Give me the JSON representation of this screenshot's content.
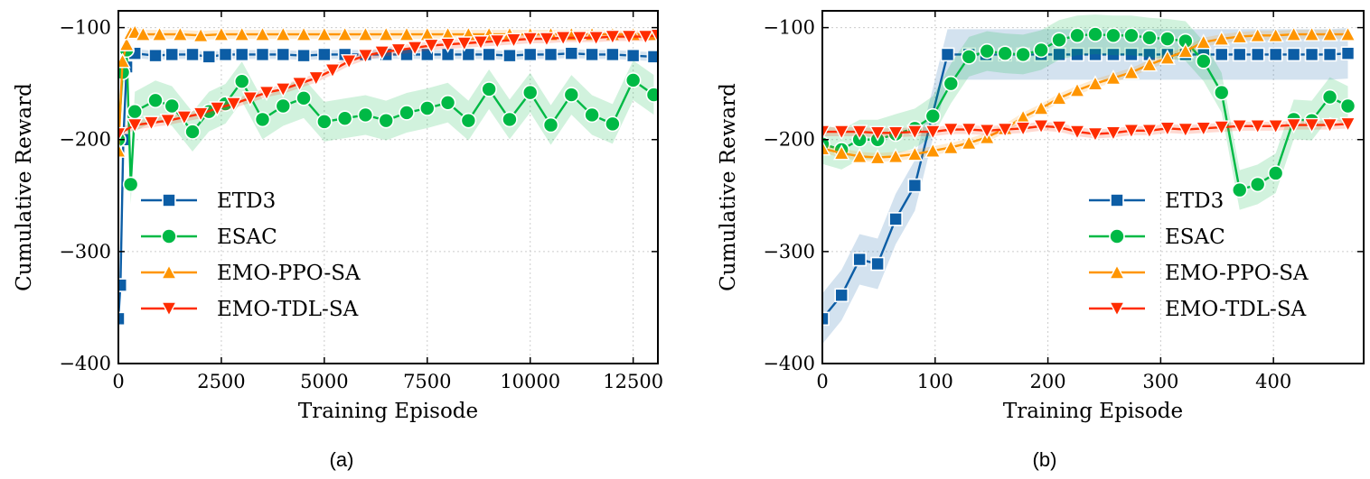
{
  "colors": {
    "ETD3": "#0c5da5",
    "ESAC": "#00b945",
    "EMO-PPO-SA": "#ff9500",
    "EMO-TDL-SA": "#ff2c00"
  },
  "chart_data": [
    {
      "type": "line",
      "caption": "(a)",
      "xlabel": "Training Episode",
      "ylabel": "Cumulative Reward",
      "xlim": [
        0,
        13100
      ],
      "ylim": [
        -400,
        -85
      ],
      "xticks": [
        0,
        2500,
        5000,
        7500,
        10000,
        12500
      ],
      "xtick_labels": [
        "0",
        "2500",
        "5000",
        "7500",
        "10000",
        "12500"
      ],
      "yticks": [
        -400,
        -300,
        -200,
        -100
      ],
      "ytick_labels": [
        "−400",
        "−300",
        "−200",
        "−100"
      ],
      "grid": true,
      "legend": "lower-left",
      "series": [
        {
          "name": "ETD3",
          "marker": "square",
          "x": [
            0,
            50,
            120,
            200,
            300,
            400,
            900,
            1300,
            1800,
            2200,
            2600,
            3000,
            3500,
            4000,
            4500,
            5000,
            5500,
            6000,
            6500,
            7000,
            7500,
            8000,
            8500,
            9000,
            9500,
            10000,
            10500,
            11000,
            11500,
            12000,
            12500,
            13000
          ],
          "y": [
            -360,
            -330,
            -200,
            -135,
            -124,
            -123,
            -125,
            -124,
            -124,
            -126,
            -124,
            -124,
            -124,
            -124,
            -125,
            -124,
            -124,
            -124,
            -124,
            -124,
            -124,
            -124,
            -124,
            -124,
            -125,
            -124,
            -124,
            -123,
            -124,
            -124,
            -125,
            -126
          ]
        },
        {
          "name": "ESAC",
          "marker": "circle",
          "x": [
            0,
            100,
            200,
            300,
            400,
            900,
            1300,
            1800,
            2200,
            2600,
            3000,
            3500,
            4000,
            4500,
            5000,
            5500,
            6000,
            6500,
            7000,
            7500,
            8000,
            8500,
            9000,
            9500,
            10000,
            10500,
            11000,
            11500,
            12000,
            12500,
            13000
          ],
          "y": [
            -200,
            -140,
            -120,
            -240,
            -175,
            -165,
            -170,
            -193,
            -175,
            -168,
            -148,
            -182,
            -170,
            -163,
            -184,
            -181,
            -178,
            -183,
            -176,
            -172,
            -167,
            -183,
            -155,
            -182,
            -158,
            -187,
            -160,
            -178,
            -186,
            -147,
            -160
          ]
        },
        {
          "name": "EMO-PPO-SA",
          "marker": "triangle-up",
          "x": [
            0,
            100,
            200,
            300,
            400,
            600,
            1000,
            1500,
            2000,
            2500,
            3000,
            3500,
            4000,
            4500,
            5000,
            5500,
            6000,
            6500,
            7000,
            7500,
            8000,
            8500,
            9000,
            9500,
            10000,
            10500,
            11000,
            11500,
            12000,
            12500,
            13000
          ],
          "y": [
            -210,
            -130,
            -115,
            -105,
            -104,
            -106,
            -106,
            -106,
            -107,
            -106,
            -106,
            -106,
            -106,
            -106,
            -106,
            -106,
            -106,
            -106,
            -106,
            -106,
            -106,
            -106,
            -106,
            -106,
            -106,
            -106,
            -106,
            -106,
            -106,
            -106,
            -106
          ]
        },
        {
          "name": "EMO-TDL-SA",
          "marker": "triangle-down",
          "x": [
            0,
            400,
            800,
            1200,
            1600,
            2000,
            2400,
            2800,
            3200,
            3600,
            4000,
            4400,
            4800,
            5200,
            5600,
            6000,
            6400,
            6800,
            7200,
            7600,
            8000,
            8400,
            8800,
            9200,
            9600,
            10000,
            10400,
            10800,
            11200,
            11600,
            12000,
            12400,
            12800,
            13100
          ],
          "y": [
            -195,
            -187,
            -185,
            -183,
            -180,
            -177,
            -172,
            -168,
            -163,
            -158,
            -155,
            -150,
            -145,
            -138,
            -130,
            -125,
            -122,
            -120,
            -118,
            -116,
            -115,
            -114,
            -113,
            -112,
            -111,
            -110,
            -110,
            -109,
            -109,
            -109,
            -108,
            -108,
            -108,
            -107
          ]
        }
      ]
    },
    {
      "type": "line",
      "caption": "(b)",
      "xlabel": "Training Episode",
      "ylabel": "Cumulative Reward",
      "xlim": [
        0,
        480
      ],
      "ylim": [
        -400,
        -85
      ],
      "xticks": [
        0,
        100,
        200,
        300,
        400
      ],
      "xtick_labels": [
        "0",
        "100",
        "200",
        "300",
        "400"
      ],
      "yticks": [
        -400,
        -300,
        -200,
        -100
      ],
      "ytick_labels": [
        "−400",
        "−300",
        "−200",
        "−100"
      ],
      "grid": true,
      "legend": "lower-right",
      "series": [
        {
          "name": "ETD3",
          "marker": "square",
          "x": [
            0,
            17,
            33,
            49,
            65,
            82,
            111,
            130,
            145,
            162,
            178,
            194,
            210,
            226,
            242,
            258,
            274,
            290,
            306,
            322,
            338,
            354,
            370,
            386,
            402,
            418,
            434,
            450,
            466
          ],
          "y": [
            -360,
            -339,
            -307,
            -311,
            -271,
            -241,
            -124,
            -124,
            -124,
            -124,
            -124,
            -124,
            -124,
            -124,
            -124,
            -124,
            -124,
            -124,
            -124,
            -124,
            -124,
            -124,
            -124,
            -124,
            -124,
            -124,
            -124,
            -124,
            -123
          ]
        },
        {
          "name": "ESAC",
          "marker": "circle",
          "x": [
            0,
            17,
            33,
            49,
            65,
            82,
            98,
            114,
            130,
            146,
            162,
            178,
            194,
            210,
            226,
            242,
            258,
            274,
            290,
            306,
            322,
            338,
            354,
            370,
            386,
            402,
            418,
            434,
            450,
            466
          ],
          "y": [
            -204,
            -209,
            -200,
            -200,
            -195,
            -190,
            -179,
            -150,
            -126,
            -121,
            -123,
            -124,
            -120,
            -111,
            -107,
            -106,
            -107,
            -107,
            -109,
            -110,
            -112,
            -130,
            -158,
            -245,
            -240,
            -230,
            -182,
            -183,
            -162,
            -170
          ]
        },
        {
          "name": "EMO-PPO-SA",
          "marker": "triangle-up",
          "x": [
            0,
            17,
            33,
            49,
            65,
            82,
            98,
            114,
            130,
            146,
            162,
            178,
            194,
            210,
            226,
            242,
            258,
            274,
            290,
            306,
            322,
            338,
            354,
            370,
            386,
            402,
            418,
            434,
            450,
            466
          ],
          "y": [
            -208,
            -212,
            -215,
            -216,
            -215,
            -213,
            -210,
            -207,
            -203,
            -198,
            -190,
            -180,
            -172,
            -163,
            -156,
            -150,
            -145,
            -140,
            -133,
            -127,
            -121,
            -113,
            -110,
            -108,
            -107,
            -107,
            -106,
            -106,
            -106,
            -106
          ]
        },
        {
          "name": "EMO-TDL-SA",
          "marker": "triangle-down",
          "x": [
            0,
            17,
            33,
            49,
            65,
            82,
            98,
            114,
            130,
            146,
            162,
            178,
            194,
            210,
            226,
            242,
            258,
            274,
            290,
            306,
            322,
            338,
            354,
            370,
            386,
            402,
            418,
            434,
            450,
            466
          ],
          "y": [
            -193,
            -193,
            -193,
            -194,
            -194,
            -193,
            -193,
            -191,
            -191,
            -192,
            -191,
            -190,
            -188,
            -189,
            -193,
            -195,
            -194,
            -192,
            -192,
            -190,
            -191,
            -190,
            -189,
            -188,
            -188,
            -188,
            -187,
            -187,
            -187,
            -186
          ]
        }
      ]
    }
  ]
}
